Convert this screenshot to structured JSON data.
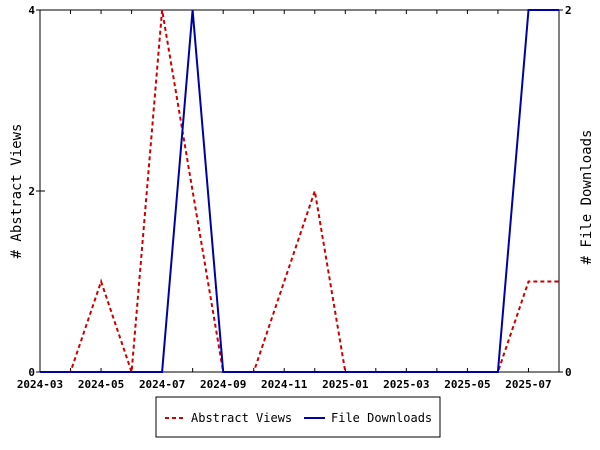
{
  "chart_data": {
    "type": "line",
    "x": [
      "2024-03",
      "2024-04",
      "2024-05",
      "2024-06",
      "2024-07",
      "2024-08",
      "2024-09",
      "2024-10",
      "2024-11",
      "2024-12",
      "2025-01",
      "2025-02",
      "2025-03",
      "2025-04",
      "2025-05",
      "2025-06",
      "2025-07",
      "2025-08"
    ],
    "x_tick_labels": [
      "2024-03",
      "2024-05",
      "2024-07",
      "2024-09",
      "2024-11",
      "2025-01",
      "2025-03",
      "2025-05",
      "2025-07"
    ],
    "series": [
      {
        "name": "Abstract Views",
        "axis": "left",
        "color": "#cc0000",
        "style": "dashed",
        "values": [
          0,
          0,
          1,
          0,
          4,
          2,
          0,
          0,
          1,
          2,
          0,
          0,
          0,
          0,
          0,
          0,
          1,
          1
        ]
      },
      {
        "name": "File Downloads",
        "axis": "right",
        "color": "#0000aa",
        "style": "solid",
        "values": [
          0,
          0,
          0,
          0,
          0,
          2,
          0,
          0,
          0,
          0,
          0,
          0,
          0,
          0,
          0,
          0,
          2,
          2
        ]
      }
    ],
    "ylabel_left": "# Abstract Views",
    "ylabel_right": "# File Downloads",
    "ylim_left": [
      0,
      4
    ],
    "ylim_right": [
      0,
      2
    ],
    "yticks_left": [
      0,
      2,
      4
    ],
    "yticks_right": [
      0,
      2
    ],
    "grid": false,
    "legend": "bottom-center"
  }
}
